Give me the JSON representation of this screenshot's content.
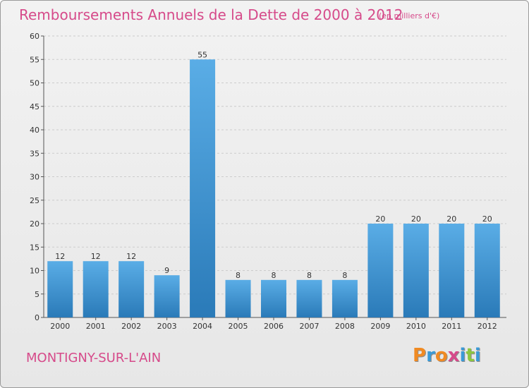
{
  "page": {
    "title": "Remboursements Annuels de la Dette de 2000 à 2012",
    "unit": "(en milliers d'€)",
    "city": "MONTIGNY-SUR-L'AIN",
    "logo": "Proxiti"
  },
  "colors": {
    "title": "#d64a8a",
    "bar_top": "#5aade6",
    "bar_bottom": "#2a7ab8",
    "logo_letters": [
      "#f08a22",
      "#3a9ad6",
      "#f08a22",
      "#d64a8a",
      "#3a9ad6",
      "#8cc63f",
      "#3a9ad6"
    ]
  },
  "chart_data": {
    "type": "bar",
    "categories": [
      "2000",
      "2001",
      "2002",
      "2003",
      "2004",
      "2005",
      "2006",
      "2007",
      "2008",
      "2009",
      "2010",
      "2011",
      "2012"
    ],
    "values": [
      12,
      12,
      12,
      9,
      55,
      8,
      8,
      8,
      8,
      20,
      20,
      20,
      20
    ],
    "title": "Remboursements Annuels de la Dette de 2000 à 2012",
    "ylim": [
      0,
      60
    ],
    "yticks": [
      0,
      5,
      10,
      15,
      20,
      25,
      30,
      35,
      40,
      45,
      50,
      55,
      60
    ],
    "grid": true,
    "data_labels": true
  }
}
